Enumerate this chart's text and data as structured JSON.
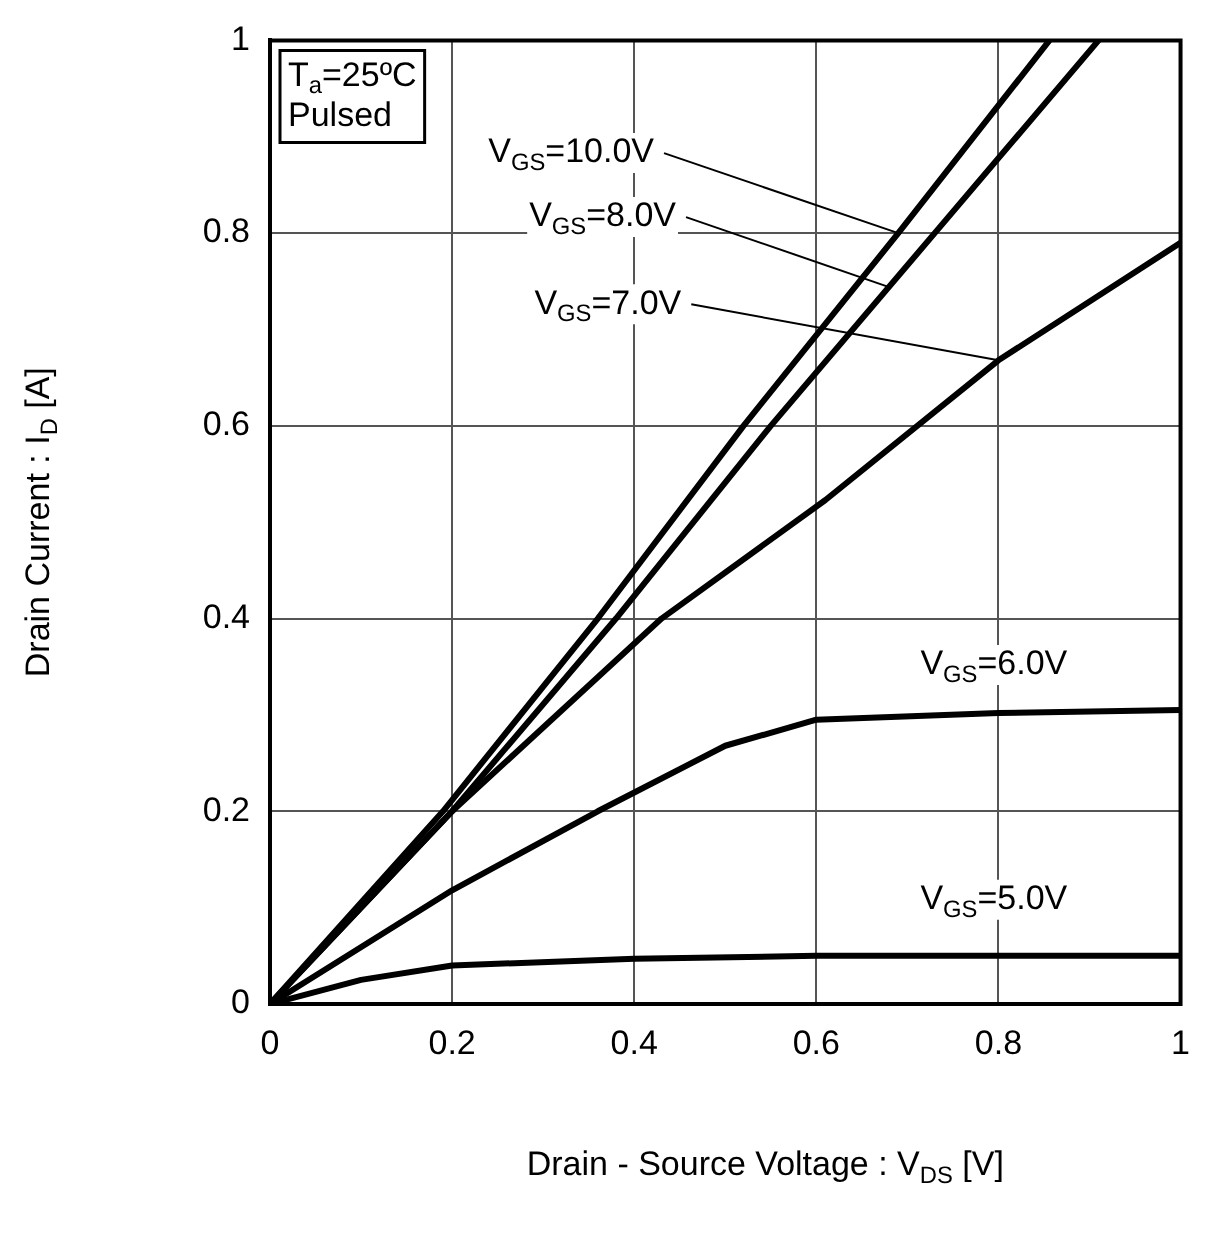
{
  "chart_data": {
    "type": "line",
    "xlabel": "Drain - Source Voltage : V$_{DS}$ [V]",
    "ylabel": "Drain Current : I$_{D}$ [A]",
    "xlim": [
      0,
      1
    ],
    "xticks": [
      0,
      0.2,
      0.4,
      0.6,
      0.8,
      1
    ],
    "ylim": [
      0,
      1
    ],
    "yticks": [
      0,
      0.2,
      0.4,
      0.6,
      0.8,
      1
    ],
    "grid": true,
    "legend": false,
    "marker": "none",
    "line_style": "solid",
    "series": [
      {
        "color": "#000000",
        "x": [
          0,
          0.19,
          0.36,
          0.52,
          0.69,
          0.856
        ],
        "values": [
          0,
          0.2,
          0.4,
          0.6,
          0.8,
          1
        ]
      },
      {
        "color": "#000000",
        "x": [
          0,
          0.2,
          0.38,
          0.55,
          0.73,
          0.91
        ],
        "values": [
          0,
          0.2,
          0.4,
          0.6,
          0.8,
          1
        ]
      },
      {
        "color": "#000000",
        "x": [
          0,
          0.2,
          0.43,
          0.61,
          0.8,
          1
        ],
        "values": [
          0,
          0.2,
          0.4,
          0.523,
          0.668,
          0.79
        ]
      },
      {
        "color": "#000000",
        "x": [
          0,
          0.2,
          0.36,
          0.5,
          0.6,
          0.8,
          1
        ],
        "values": [
          0,
          0.118,
          0.2,
          0.268,
          0.295,
          0.302,
          0.305
        ]
      },
      {
        "color": "#000000",
        "x": [
          0,
          0.1,
          0.2,
          0.4,
          0.6,
          0.8,
          1
        ],
        "values": [
          0,
          0.025,
          0.04,
          0.047,
          0.05,
          0.05,
          0.05
        ]
      }
    ],
    "annotations": [
      "T$_{a}$=25ºC",
      "Pulsed",
      {
        "text": "V$_{GS}$=10.0V",
        "x": 0.69,
        "y": 0.8
      },
      {
        "text": "V$_{GS}$=8.0V",
        "x": 0.68,
        "y": 0.744
      },
      {
        "text": "V$_{GS}$=7.0V",
        "x": 0.8,
        "y": 0.668
      },
      {
        "text": "V$_{GS}$=6.0V",
        "x": 0.8,
        "y": 0.302
      },
      {
        "text": "V$_{GS}$=5.0V",
        "x": 0.8,
        "y": 0.05
      }
    ]
  }
}
